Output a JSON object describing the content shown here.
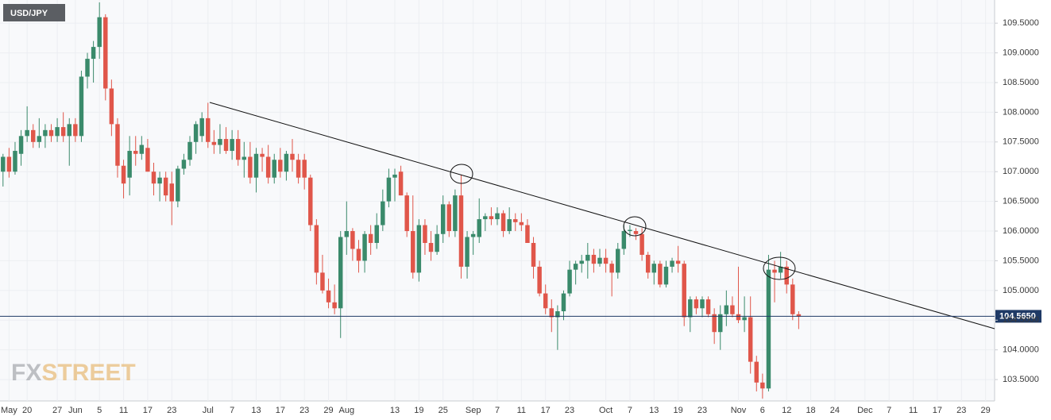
{
  "chart_data": {
    "type": "candlestick",
    "title": "USD/JPY",
    "watermark": [
      "FX",
      "STREET"
    ],
    "up_color": "#3a8a6b",
    "down_color": "#e0564a",
    "grid": true,
    "categories": [
      null,
      "May",
      null,
      null,
      "20",
      null,
      null,
      null,
      null,
      "27",
      null,
      null,
      "Jun",
      null,
      null,
      null,
      "5",
      null,
      null,
      null,
      "11",
      null,
      null,
      null,
      "17",
      null,
      null,
      null,
      "23",
      null,
      null,
      null,
      null,
      null,
      "Jul",
      null,
      null,
      null,
      "7",
      null,
      null,
      null,
      "13",
      null,
      null,
      null,
      "17",
      null,
      null,
      null,
      "23",
      null,
      null,
      null,
      "29",
      null,
      null,
      "Aug",
      null,
      null,
      null,
      null,
      null,
      null,
      null,
      "13",
      null,
      null,
      null,
      "19",
      null,
      null,
      null,
      "25",
      null,
      null,
      null,
      null,
      "Sep",
      null,
      null,
      null,
      "7",
      null,
      null,
      null,
      "11",
      null,
      null,
      null,
      "17",
      null,
      null,
      null,
      "23",
      null,
      null,
      null,
      null,
      null,
      "Oct",
      null,
      null,
      null,
      "7",
      null,
      null,
      null,
      "13",
      null,
      null,
      null,
      "19",
      null,
      null,
      null,
      "23",
      null,
      null,
      null,
      null,
      null,
      "Nov",
      null,
      null,
      null,
      "6",
      null,
      null,
      null,
      "12",
      null,
      null,
      null,
      "18",
      null,
      null,
      null,
      "24",
      null,
      null,
      null,
      null,
      "Dec",
      null,
      null,
      null,
      "7",
      null,
      null,
      null,
      "11",
      null,
      null,
      null,
      "17",
      null,
      null,
      null,
      "23",
      null,
      null,
      null,
      "29",
      null
    ],
    "open": [
      107.0,
      107.25,
      107.0,
      107.3,
      107.6,
      107.7,
      107.5,
      107.6,
      107.7,
      107.6,
      107.75,
      107.6,
      107.8,
      107.6,
      108.6,
      108.9,
      109.1,
      109.6,
      108.4,
      107.8,
      107.1,
      106.9,
      107.35,
      107.3,
      107.4,
      107.0,
      106.8,
      106.9,
      106.8,
      106.5,
      107.05,
      107.2,
      107.5,
      107.6,
      107.9,
      107.5,
      107.45,
      107.55,
      107.35,
      107.55,
      107.2,
      107.25,
      106.9,
      107.3,
      107.25,
      106.9,
      107.2,
      107.0,
      107.3,
      107.2,
      107.2,
      106.9,
      106.1,
      105.3,
      105.0,
      104.8,
      104.7,
      105.9,
      106.0,
      105.7,
      105.5,
      105.95,
      105.8,
      106.1,
      106.5,
      106.9,
      107.0,
      106.6,
      106.0,
      105.3,
      106.1,
      105.8,
      105.65,
      105.95,
      106.45,
      106.0,
      106.6,
      105.4,
      105.9,
      105.9,
      106.2,
      106.25,
      106.2,
      106.3,
      106.0,
      106.2,
      106.15,
      106.1,
      105.8,
      105.4,
      104.95,
      104.7,
      104.55,
      104.65,
      104.95,
      105.35,
      105.45,
      105.5,
      105.6,
      105.45,
      105.55,
      105.45,
      105.3,
      105.7,
      106.0,
      106.0,
      105.95,
      105.6,
      105.3,
      105.45,
      105.1,
      105.4,
      105.5,
      105.45,
      104.55,
      104.85,
      104.7,
      104.85,
      104.6,
      104.3,
      104.6,
      104.75,
      104.6,
      104.5,
      104.55,
      103.8,
      103.45,
      103.35,
      105.35,
      105.3,
      105.4,
      105.1,
      104.6,
      null,
      null,
      null,
      null,
      null,
      null,
      null,
      null,
      null,
      null,
      null,
      null,
      null,
      null,
      null,
      null,
      null,
      null,
      null,
      null,
      null,
      null,
      null,
      null,
      null,
      null,
      null,
      null,
      null,
      null,
      null,
      null
    ],
    "high": [
      107.3,
      107.4,
      107.5,
      107.7,
      108.1,
      107.8,
      107.9,
      107.8,
      107.8,
      107.9,
      108.0,
      107.9,
      107.9,
      108.7,
      109.0,
      109.2,
      109.85,
      109.65,
      108.55,
      107.9,
      107.2,
      107.6,
      107.6,
      107.6,
      107.55,
      107.15,
      107.0,
      107.0,
      107.0,
      107.1,
      107.3,
      107.6,
      107.85,
      108.0,
      108.16,
      107.7,
      107.8,
      107.75,
      107.7,
      107.7,
      107.5,
      107.5,
      107.4,
      107.4,
      107.45,
      107.3,
      107.4,
      107.35,
      107.55,
      107.3,
      107.3,
      106.95,
      106.2,
      105.6,
      105.2,
      105.1,
      106.0,
      106.5,
      106.05,
      105.85,
      106.0,
      106.1,
      106.3,
      106.7,
      107.05,
      107.05,
      107.1,
      106.65,
      106.6,
      106.2,
      106.2,
      106.0,
      106.1,
      106.6,
      106.5,
      106.7,
      106.95,
      106.0,
      106.0,
      106.55,
      106.3,
      106.4,
      106.4,
      106.35,
      106.4,
      106.3,
      106.3,
      106.2,
      105.9,
      105.5,
      105.1,
      104.85,
      104.75,
      105.0,
      105.5,
      105.5,
      105.6,
      105.8,
      105.7,
      105.7,
      105.7,
      105.5,
      105.8,
      106.1,
      106.1,
      106.05,
      106.05,
      105.65,
      105.5,
      105.5,
      105.5,
      105.55,
      105.75,
      105.5,
      104.9,
      104.9,
      104.9,
      104.9,
      104.7,
      104.75,
      105.0,
      104.9,
      105.4,
      104.9,
      104.9,
      103.9,
      103.6,
      105.6,
      105.5,
      105.65,
      105.5,
      105.2,
      104.65,
      null,
      null,
      null,
      null,
      null,
      null,
      null,
      null,
      null,
      null,
      null,
      null,
      null,
      null,
      null,
      null,
      null,
      null,
      null,
      null,
      null,
      null,
      null,
      null,
      null,
      null,
      null,
      null,
      null,
      null,
      null,
      null
    ],
    "low": [
      106.75,
      106.9,
      106.95,
      107.1,
      107.5,
      107.4,
      107.4,
      107.4,
      107.5,
      107.5,
      107.5,
      107.1,
      107.5,
      107.5,
      108.4,
      108.5,
      108.9,
      108.2,
      107.6,
      106.9,
      106.55,
      106.6,
      107.1,
      107.2,
      107.0,
      106.6,
      106.5,
      106.5,
      106.1,
      106.4,
      106.95,
      107.1,
      107.3,
      107.5,
      107.4,
      107.3,
      107.3,
      107.3,
      107.2,
      107.1,
      106.9,
      106.8,
      106.65,
      107.0,
      106.8,
      106.8,
      106.9,
      106.85,
      107.0,
      106.8,
      106.7,
      106.0,
      105.1,
      104.95,
      104.7,
      104.6,
      104.2,
      105.6,
      105.5,
      105.3,
      105.3,
      105.6,
      105.7,
      106.0,
      106.4,
      106.5,
      106.6,
      105.9,
      105.2,
      105.15,
      105.6,
      105.5,
      105.6,
      105.8,
      105.9,
      105.9,
      105.2,
      105.2,
      105.6,
      105.8,
      106.0,
      106.1,
      106.1,
      105.9,
      105.95,
      106.0,
      106.0,
      105.8,
      105.2,
      104.9,
      104.6,
      104.3,
      104.0,
      104.5,
      104.9,
      105.1,
      105.3,
      105.2,
      105.3,
      105.4,
      105.3,
      104.9,
      105.2,
      105.6,
      105.9,
      105.85,
      105.5,
      105.2,
      105.1,
      105.05,
      105.05,
      105.3,
      105.3,
      104.4,
      104.3,
      104.6,
      104.55,
      104.55,
      104.1,
      104.0,
      104.4,
      104.55,
      104.45,
      104.3,
      103.6,
      103.3,
      103.18,
      103.3,
      104.8,
      105.2,
      104.95,
      104.5,
      104.35,
      null,
      null,
      null,
      null,
      null,
      null,
      null,
      null,
      null,
      null,
      null,
      null,
      null,
      null,
      null,
      null,
      null,
      null,
      null,
      null,
      null,
      null,
      null,
      null,
      null,
      null,
      null,
      null,
      null,
      null,
      null,
      null
    ],
    "close": [
      107.25,
      107.0,
      107.35,
      107.6,
      107.7,
      107.5,
      107.6,
      107.7,
      107.6,
      107.75,
      107.6,
      107.8,
      107.6,
      108.6,
      108.9,
      109.1,
      109.6,
      108.4,
      107.8,
      107.1,
      106.8,
      107.35,
      107.3,
      107.45,
      107.0,
      106.8,
      106.9,
      106.6,
      106.5,
      107.05,
      107.2,
      107.5,
      107.8,
      107.9,
      107.5,
      107.45,
      107.55,
      107.35,
      107.55,
      107.2,
      107.25,
      106.9,
      107.3,
      107.25,
      106.9,
      107.2,
      107.0,
      107.3,
      107.2,
      106.9,
      106.9,
      106.1,
      105.3,
      105.0,
      104.8,
      104.7,
      105.9,
      106.0,
      105.7,
      105.5,
      105.95,
      105.8,
      106.1,
      106.5,
      106.9,
      106.95,
      106.6,
      106.0,
      105.3,
      106.1,
      105.8,
      105.65,
      105.95,
      106.45,
      106.0,
      106.6,
      105.4,
      105.9,
      105.95,
      106.2,
      106.25,
      106.2,
      106.3,
      106.0,
      106.2,
      106.15,
      106.1,
      105.8,
      105.4,
      104.95,
      104.7,
      104.55,
      104.65,
      104.95,
      105.35,
      105.45,
      105.5,
      105.6,
      105.45,
      105.55,
      105.45,
      105.3,
      105.7,
      106.0,
      106.02,
      105.95,
      105.6,
      105.3,
      105.45,
      105.1,
      105.4,
      105.5,
      105.45,
      104.55,
      104.85,
      104.7,
      104.85,
      104.6,
      104.3,
      104.6,
      104.75,
      104.6,
      104.5,
      104.55,
      103.8,
      103.45,
      103.35,
      105.35,
      105.3,
      105.4,
      105.1,
      104.6,
      104.56,
      null,
      null,
      null,
      null,
      null,
      null,
      null,
      null,
      null,
      null,
      null,
      null,
      null,
      null,
      null,
      null,
      null,
      null,
      null,
      null,
      null,
      null,
      null,
      null,
      null,
      null,
      null,
      null,
      null,
      null,
      null,
      null
    ],
    "ylim": [
      103.14,
      109.89
    ],
    "yticks": [
      {
        "value": 103.5,
        "label": "103.5000"
      },
      {
        "value": 104.0,
        "label": "104.0000"
      },
      {
        "value": 104.5,
        "label": "104.5000"
      },
      {
        "value": 105.0,
        "label": "105.0000"
      },
      {
        "value": 105.5,
        "label": "105.5000"
      },
      {
        "value": 106.0,
        "label": "106.0000"
      },
      {
        "value": 106.5,
        "label": "106.5000"
      },
      {
        "value": 107.0,
        "label": "107.0000"
      },
      {
        "value": 107.5,
        "label": "107.5000"
      },
      {
        "value": 108.0,
        "label": "108.0000"
      },
      {
        "value": 108.5,
        "label": "108.5000"
      },
      {
        "value": 109.0,
        "label": "109.0000"
      },
      {
        "value": 109.5,
        "label": "109.5000"
      }
    ],
    "last_price": {
      "value": 104.565,
      "label": "104.5650"
    }
  }
}
